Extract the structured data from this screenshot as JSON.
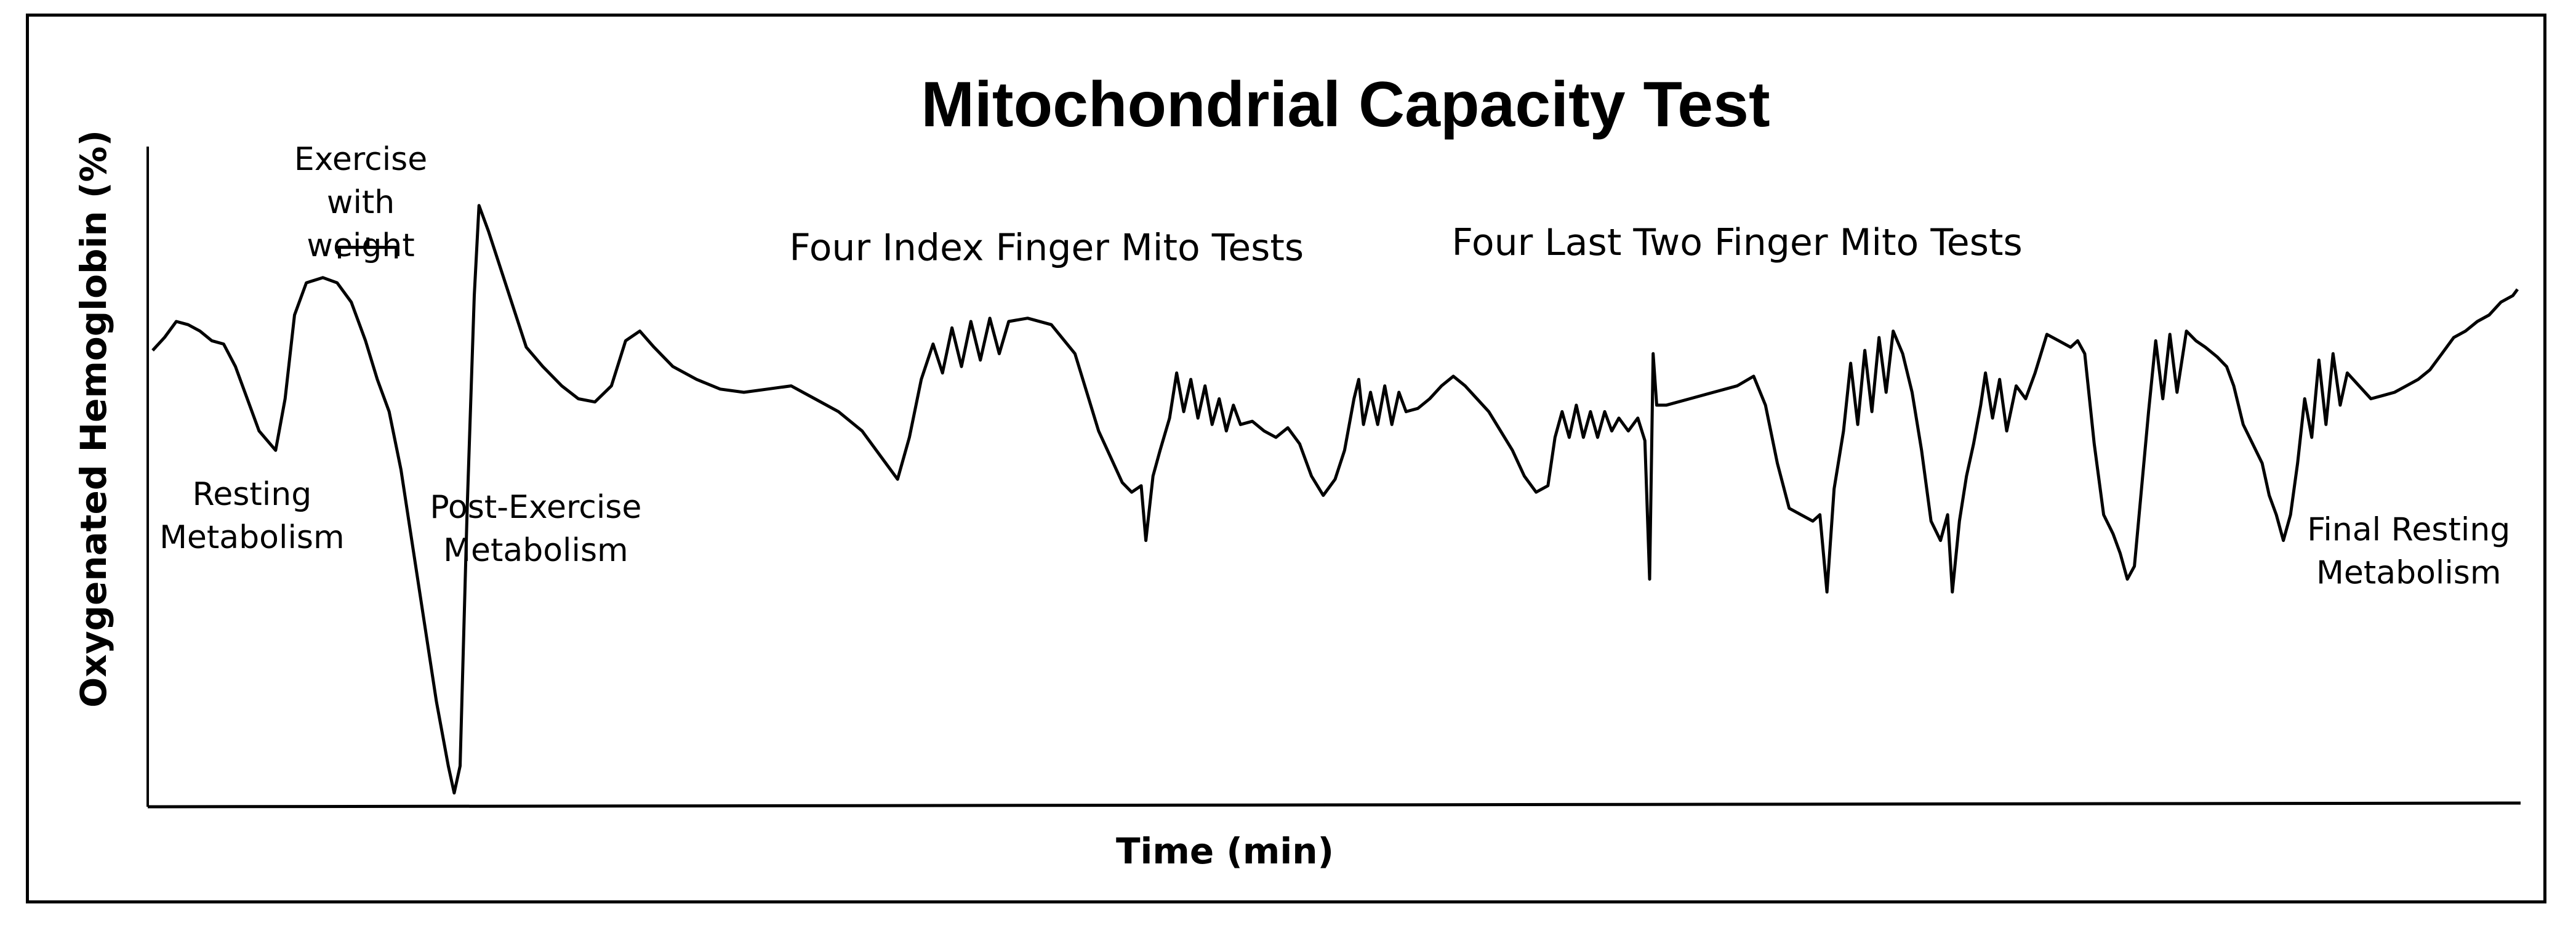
{
  "chart_data": {
    "type": "line",
    "title": "Mitochondrial Capacity Test",
    "xlabel": "Time (min)",
    "ylabel": "Oxygenated Hemoglobin  (%)",
    "xlim": [
      0,
      100
    ],
    "ylim": [
      0,
      100
    ],
    "grid": false,
    "legend": "none",
    "line_color": "#000000",
    "annotations": [
      {
        "lines": [
          "Exercise",
          "with",
          "weight"
        ],
        "x": 8.8,
        "y": 97.5
      },
      {
        "lines": [
          "Resting",
          "Metabolism"
        ],
        "x": 4.2,
        "y": 45.5
      },
      {
        "lines": [
          "Post-Exercise",
          "Metabolism"
        ],
        "x": 16.2,
        "y": 43.5
      },
      {
        "lines": [
          "Four Index Finger Mito Tests"
        ],
        "x": 37.8,
        "y": 83.5
      },
      {
        "lines": [
          "Four Last Two Finger Mito Tests"
        ],
        "x": 67.0,
        "y": 84.3
      },
      {
        "lines": [
          "Final Resting",
          "Metabolism"
        ],
        "x": 95.4,
        "y": 40.0
      }
    ],
    "bracket": {
      "x_start": 7.9,
      "x_end": 10.3,
      "y": 85.5
    },
    "series": [
      {
        "values": [
          [
            0.0,
            69.5
          ],
          [
            0.5,
            71.5
          ],
          [
            1.0,
            74.0
          ],
          [
            1.5,
            73.5
          ],
          [
            2.0,
            72.5
          ],
          [
            2.5,
            71.0
          ],
          [
            3.0,
            70.5
          ],
          [
            3.5,
            67.0
          ],
          [
            4.0,
            62.0
          ],
          [
            4.5,
            57.0
          ],
          [
            5.2,
            54.0
          ],
          [
            5.6,
            62.0
          ],
          [
            6.0,
            75.0
          ],
          [
            6.5,
            80.0
          ],
          [
            7.2,
            80.8
          ],
          [
            7.8,
            80.0
          ],
          [
            8.4,
            77.0
          ],
          [
            9.0,
            71.0
          ],
          [
            9.5,
            65.0
          ],
          [
            10.0,
            60.0
          ],
          [
            10.5,
            51.0
          ],
          [
            11.0,
            39.0
          ],
          [
            11.5,
            27.0
          ],
          [
            12.0,
            15.0
          ],
          [
            12.5,
            5.0
          ],
          [
            12.75,
            0.8
          ],
          [
            13.0,
            5.0
          ],
          [
            13.3,
            45.0
          ],
          [
            13.6,
            78.0
          ],
          [
            13.8,
            92.0
          ],
          [
            14.2,
            88.0
          ],
          [
            15.0,
            79.0
          ],
          [
            15.8,
            70.0
          ],
          [
            16.5,
            67.0
          ],
          [
            17.3,
            64.0
          ],
          [
            18.0,
            62.0
          ],
          [
            18.7,
            61.5
          ],
          [
            19.4,
            64.0
          ],
          [
            20.0,
            71.0
          ],
          [
            20.6,
            72.5
          ],
          [
            21.2,
            70.0
          ],
          [
            22.0,
            67.0
          ],
          [
            23.0,
            65.0
          ],
          [
            24.0,
            63.5
          ],
          [
            25.0,
            63.0
          ],
          [
            26.0,
            63.5
          ],
          [
            27.0,
            64.0
          ],
          [
            28.0,
            62.0
          ],
          [
            29.0,
            60.0
          ],
          [
            30.0,
            57.0
          ],
          [
            30.8,
            53.0
          ],
          [
            31.5,
            49.5
          ],
          [
            32.0,
            56.0
          ],
          [
            32.5,
            65.0
          ],
          [
            33.0,
            70.5
          ],
          [
            33.4,
            66.0
          ],
          [
            33.8,
            73.0
          ],
          [
            34.2,
            67.0
          ],
          [
            34.6,
            74.0
          ],
          [
            35.0,
            68.0
          ],
          [
            35.4,
            74.5
          ],
          [
            35.8,
            69.0
          ],
          [
            36.2,
            74.0
          ],
          [
            37.0,
            74.5
          ],
          [
            38.0,
            73.5
          ],
          [
            39.0,
            69.0
          ],
          [
            39.5,
            63.0
          ],
          [
            40.0,
            57.0
          ],
          [
            40.5,
            53.0
          ],
          [
            41.0,
            49.0
          ],
          [
            41.4,
            47.5
          ],
          [
            41.8,
            48.5
          ],
          [
            42.0,
            40.0
          ],
          [
            42.3,
            50.0
          ],
          [
            42.6,
            54.0
          ],
          [
            43.0,
            59.0
          ],
          [
            43.3,
            66.0
          ],
          [
            43.6,
            60.0
          ],
          [
            43.9,
            65.0
          ],
          [
            44.2,
            59.0
          ],
          [
            44.5,
            64.0
          ],
          [
            44.8,
            58.0
          ],
          [
            45.1,
            62.0
          ],
          [
            45.4,
            57.0
          ],
          [
            45.7,
            61.0
          ],
          [
            46.0,
            58.0
          ],
          [
            46.5,
            58.5
          ],
          [
            47.0,
            57.0
          ],
          [
            47.5,
            56.0
          ],
          [
            48.0,
            57.5
          ],
          [
            48.5,
            55.0
          ],
          [
            49.0,
            50.0
          ],
          [
            49.5,
            47.0
          ],
          [
            50.0,
            49.5
          ],
          [
            50.4,
            54.0
          ],
          [
            50.8,
            62.0
          ],
          [
            51.0,
            65.0
          ],
          [
            51.2,
            58.0
          ],
          [
            51.5,
            63.0
          ],
          [
            51.8,
            58.0
          ],
          [
            52.1,
            64.0
          ],
          [
            52.4,
            58.0
          ],
          [
            52.7,
            63.0
          ],
          [
            53.0,
            60.0
          ],
          [
            53.5,
            60.5
          ],
          [
            54.0,
            62.0
          ],
          [
            54.5,
            64.0
          ],
          [
            55.0,
            65.5
          ],
          [
            55.5,
            64.0
          ],
          [
            56.0,
            62.0
          ],
          [
            56.5,
            60.0
          ],
          [
            57.0,
            57.0
          ],
          [
            57.5,
            54.0
          ],
          [
            58.0,
            50.0
          ],
          [
            58.5,
            47.5
          ],
          [
            59.0,
            48.5
          ],
          [
            59.3,
            56.0
          ],
          [
            59.6,
            60.0
          ],
          [
            59.9,
            56.0
          ],
          [
            60.2,
            61.0
          ],
          [
            60.5,
            56.0
          ],
          [
            60.8,
            60.0
          ],
          [
            61.1,
            56.0
          ],
          [
            61.4,
            60.0
          ],
          [
            61.7,
            57.0
          ],
          [
            62.0,
            59.0
          ],
          [
            62.4,
            57.0
          ],
          [
            62.8,
            59.0
          ],
          [
            63.1,
            55.5
          ],
          [
            63.3,
            34.0
          ],
          [
            63.45,
            69.0
          ],
          [
            63.6,
            61.0
          ],
          [
            64.0,
            61.0
          ],
          [
            65.0,
            62.0
          ],
          [
            66.0,
            63.0
          ],
          [
            67.0,
            64.0
          ],
          [
            67.7,
            65.5
          ],
          [
            68.2,
            61.0
          ],
          [
            68.7,
            52.0
          ],
          [
            69.2,
            45.0
          ],
          [
            69.7,
            44.0
          ],
          [
            70.2,
            43.0
          ],
          [
            70.5,
            44.0
          ],
          [
            70.8,
            32.0
          ],
          [
            71.1,
            48.0
          ],
          [
            71.5,
            57.0
          ],
          [
            71.8,
            67.5
          ],
          [
            72.1,
            58.0
          ],
          [
            72.4,
            69.5
          ],
          [
            72.7,
            60.0
          ],
          [
            73.0,
            71.5
          ],
          [
            73.3,
            63.0
          ],
          [
            73.6,
            72.5
          ],
          [
            74.0,
            69.0
          ],
          [
            74.4,
            63.0
          ],
          [
            74.8,
            54.0
          ],
          [
            75.2,
            43.0
          ],
          [
            75.6,
            40.0
          ],
          [
            75.9,
            44.0
          ],
          [
            76.1,
            32.0
          ],
          [
            76.4,
            43.0
          ],
          [
            76.7,
            50.0
          ],
          [
            77.0,
            55.0
          ],
          [
            77.3,
            61.0
          ],
          [
            77.5,
            66.0
          ],
          [
            77.8,
            59.0
          ],
          [
            78.1,
            65.0
          ],
          [
            78.4,
            57.0
          ],
          [
            78.8,
            64.0
          ],
          [
            79.2,
            62.0
          ],
          [
            79.6,
            66.0
          ],
          [
            80.1,
            72.0
          ],
          [
            80.6,
            71.0
          ],
          [
            81.1,
            70.0
          ],
          [
            81.4,
            71.0
          ],
          [
            81.7,
            69.0
          ],
          [
            82.1,
            55.0
          ],
          [
            82.5,
            44.0
          ],
          [
            82.9,
            41.0
          ],
          [
            83.2,
            38.0
          ],
          [
            83.5,
            34.0
          ],
          [
            83.8,
            36.0
          ],
          [
            84.1,
            48.0
          ],
          [
            84.4,
            60.0
          ],
          [
            84.7,
            71.0
          ],
          [
            85.0,
            62.0
          ],
          [
            85.3,
            72.0
          ],
          [
            85.6,
            63.0
          ],
          [
            86.0,
            72.5
          ],
          [
            86.4,
            71.0
          ],
          [
            86.8,
            70.0
          ],
          [
            87.3,
            68.5
          ],
          [
            87.7,
            67.0
          ],
          [
            88.0,
            64.0
          ],
          [
            88.4,
            58.0
          ],
          [
            88.8,
            55.0
          ],
          [
            89.2,
            52.0
          ],
          [
            89.5,
            47.0
          ],
          [
            89.8,
            44.0
          ],
          [
            90.1,
            40.0
          ],
          [
            90.4,
            44.0
          ],
          [
            90.7,
            52.0
          ],
          [
            91.0,
            62.0
          ],
          [
            91.3,
            56.0
          ],
          [
            91.6,
            68.0
          ],
          [
            91.9,
            58.0
          ],
          [
            92.2,
            69.0
          ],
          [
            92.5,
            61.0
          ],
          [
            92.8,
            66.0
          ],
          [
            93.3,
            64.0
          ],
          [
            93.8,
            62.0
          ],
          [
            94.3,
            62.5
          ],
          [
            94.8,
            63.0
          ],
          [
            95.3,
            64.0
          ],
          [
            95.8,
            65.0
          ],
          [
            96.3,
            66.5
          ],
          [
            96.8,
            69.0
          ],
          [
            97.3,
            71.5
          ],
          [
            97.8,
            72.5
          ],
          [
            98.3,
            74.0
          ],
          [
            98.8,
            75.0
          ],
          [
            99.3,
            77.0
          ],
          [
            99.8,
            78.0
          ],
          [
            100.0,
            79.0
          ]
        ]
      }
    ]
  }
}
